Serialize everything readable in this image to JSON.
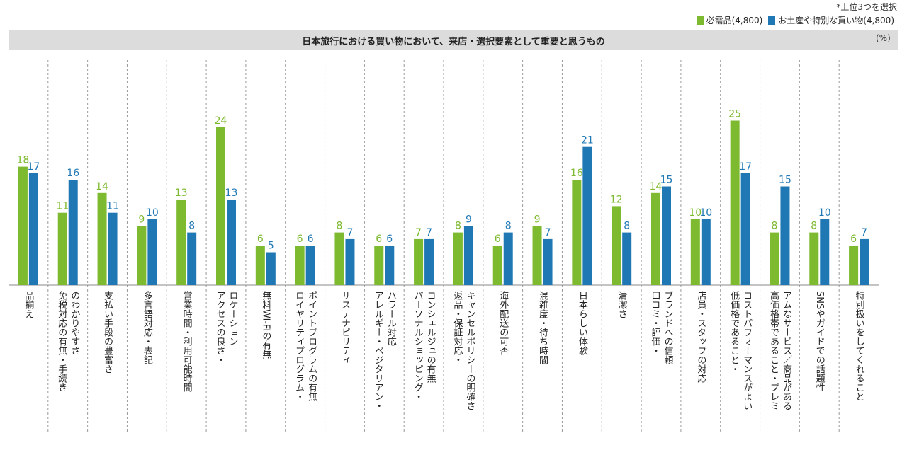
{
  "note": "*上位3つを選択",
  "chart_data": {
    "type": "bar",
    "title": "日本旅行における買い物において、来店・選択要素として重要と思うもの",
    "unit": "(%)",
    "ylim": [
      0,
      25
    ],
    "categories": [
      "品揃え",
      "免税対応の有無・手続きのわかりやすさ",
      "支払い手段の豊富さ",
      "多言語対応・表記",
      "営業時間・利用可能時間",
      "アクセスの良さ・ロケーション",
      "無料Wi-Fiの有無",
      "ロイヤリティプログラム・ポイントプログラムの有無",
      "サステナビリティ",
      "アレルギー・ベジタリアン・ハラール対応",
      "パーソナルショッピング・コンシェルジュの有無",
      "返品・保証対応・キャンセルポリシーの明確さ",
      "海外配送の可否",
      "混雑度・待ち時間",
      "日本らしい体験",
      "清潔さ",
      "口コミ・評価・ブランドへの信頼",
      "店員・スタッフの対応",
      "低価格であること・コストパフォーマンスがよい",
      "高価格帯であること・プレミアムなサービス／商品がある",
      "SNSやガイドでの話題性",
      "特別扱いをしてくれること"
    ],
    "label_lines": [
      [
        "品揃え"
      ],
      [
        "免税対応の有無・手続き",
        "のわかりやすさ"
      ],
      [
        "支払い手段の豊富さ"
      ],
      [
        "多言語対応・表記"
      ],
      [
        "営業時間・利用可能時間"
      ],
      [
        "アクセスの良さ・",
        "ロケーション"
      ],
      [
        "無料Wi-Fiの有無"
      ],
      [
        "ロイヤリティプログラム・",
        "ポイントプログラムの有無"
      ],
      [
        "サステナビリティ"
      ],
      [
        "アレルギー・ベジタリアン・",
        "ハラール対応"
      ],
      [
        "パーソナルショッピング・",
        "コンシェルジュの有無"
      ],
      [
        "返品・保証対応・",
        "キャンセルポリシーの明確さ"
      ],
      [
        "海外配送の可否"
      ],
      [
        "混雑度・待ち時間"
      ],
      [
        "日本らしい体験"
      ],
      [
        "清潔さ"
      ],
      [
        "口コミ・評価・",
        "ブランドへの信頼"
      ],
      [
        "店員・スタッフの対応"
      ],
      [
        "低価格であること・",
        "コストパフォーマンスがよい"
      ],
      [
        "高価格帯であること・プレミ",
        "アムなサービス／商品がある"
      ],
      [
        "SNSやガイドでの話題性"
      ],
      [
        "特別扱いをしてくれること"
      ]
    ],
    "series": [
      {
        "name": "必需品(4,800)",
        "color": "#7dba2f",
        "values": [
          18,
          11,
          14,
          9,
          13,
          24,
          6,
          6,
          8,
          6,
          7,
          8,
          6,
          9,
          16,
          12,
          14,
          10,
          25,
          8,
          8,
          6
        ]
      },
      {
        "name": "お土産や特別な買い物(4,800)",
        "color": "#1f78b4",
        "values": [
          17,
          16,
          11,
          10,
          8,
          13,
          5,
          6,
          7,
          6,
          7,
          9,
          8,
          7,
          21,
          8,
          15,
          10,
          17,
          15,
          10,
          7
        ]
      }
    ]
  }
}
